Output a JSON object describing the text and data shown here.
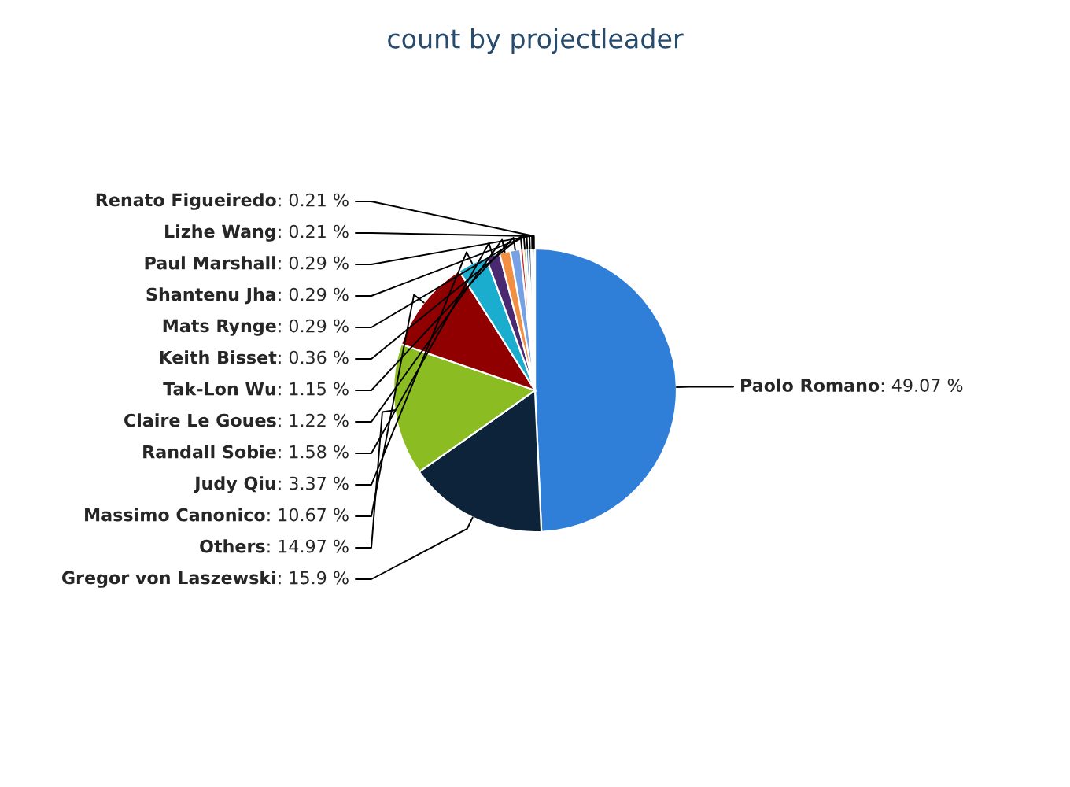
{
  "chart_data": {
    "type": "pie",
    "title": "count by projectleader",
    "categories": [
      "Paolo Romano",
      "Gregor von Laszewski",
      "Others",
      "Massimo Canonico",
      "Judy Qiu",
      "Randall Sobie",
      "Claire Le Goues",
      "Tak-Lon Wu",
      "Keith Bisset",
      "Mats Rynge",
      "Shantenu Jha",
      "Paul Marshall",
      "Lizhe Wang",
      "Renato Figueiredo"
    ],
    "values": [
      49.07,
      15.9,
      14.97,
      10.67,
      3.37,
      1.58,
      1.22,
      1.15,
      0.36,
      0.29,
      0.29,
      0.29,
      0.21,
      0.21
    ],
    "value_labels": [
      ": 49.07 %",
      ": 15.9 %",
      ": 14.97 %",
      ": 10.67 %",
      ": 3.37 %",
      ": 1.58 %",
      ": 1.22 %",
      ": 1.15 %",
      ": 0.36 %",
      ": 0.29 %",
      ": 0.29 %",
      ": 0.29 %",
      ": 0.21 %",
      ": 0.21 %"
    ],
    "colors": [
      "#2f7ed8",
      "#0d233a",
      "#8bbc21",
      "#910000",
      "#1aadce",
      "#492970",
      "#f28f43",
      "#77a1e5",
      "#c42525",
      "#a6c96a",
      "#2f7ed8",
      "#0d233a",
      "#8bbc21",
      "#910000"
    ],
    "legend": false
  }
}
